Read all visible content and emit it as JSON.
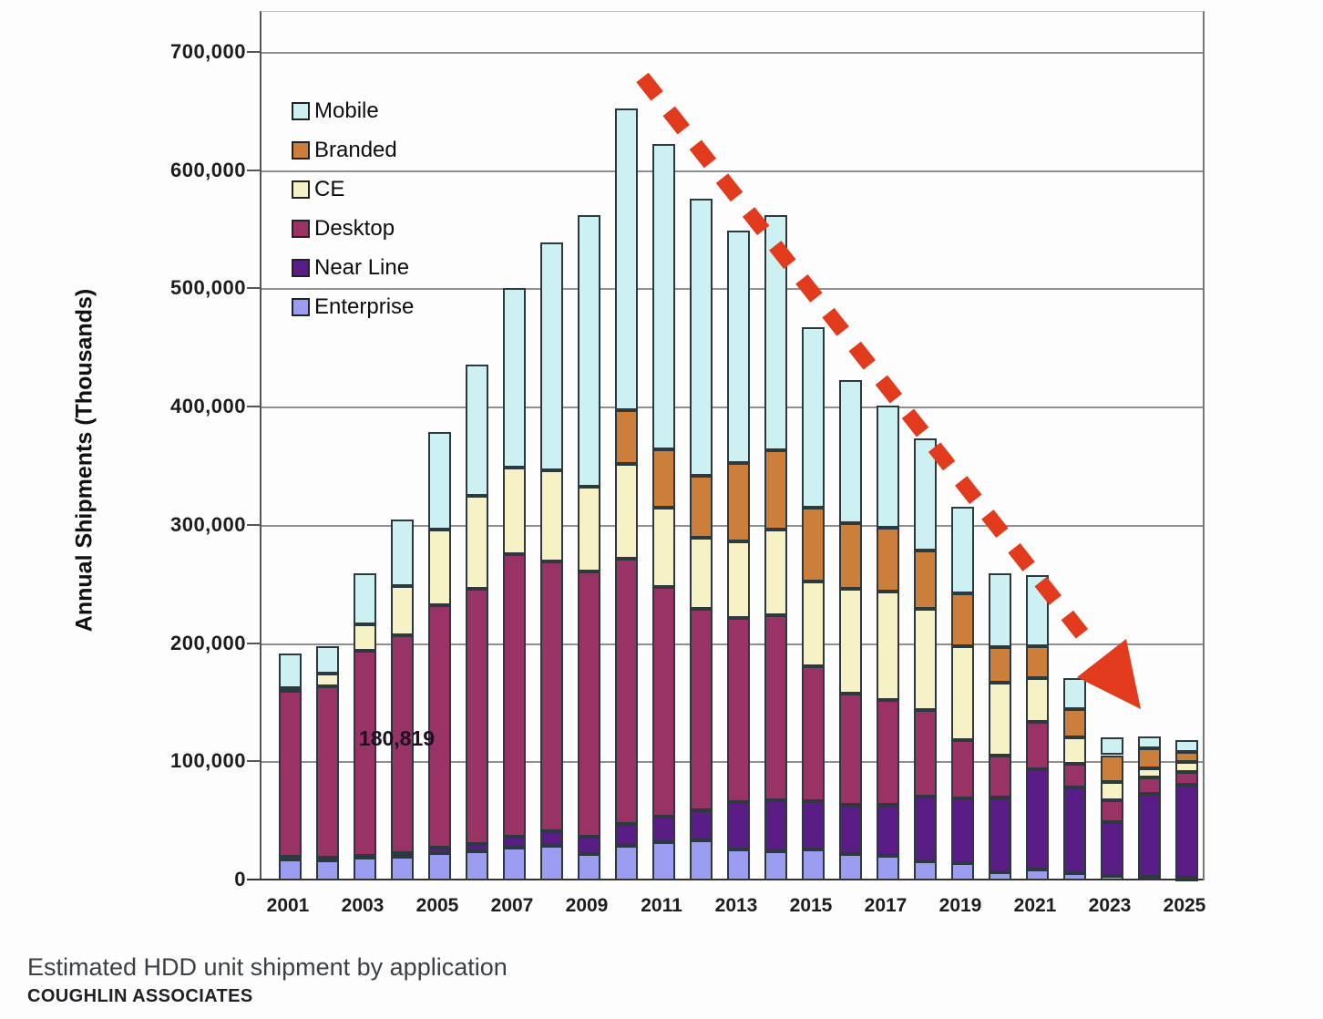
{
  "caption": "Estimated HDD unit shipment by application",
  "source": "COUGHLIN ASSOCIATES",
  "annotation_label": "180,819",
  "colors": {
    "mobile": "#cdf0f2",
    "branded": "#cc7f3a",
    "ce": "#f7f2c6",
    "desktop": "#993366",
    "near_line": "#5a1d85",
    "enterprise": "#9a9df0",
    "arrow": "#e23a1d",
    "gridline": "#8f8f8f"
  },
  "chart_data": {
    "type": "bar",
    "stacked": true,
    "title": "",
    "xlabel": "",
    "ylabel": "Annual Shipments (Thousands)",
    "ylim": [
      0,
      700000
    ],
    "ytick_step": 100000,
    "ytick_labels": [
      "0",
      "100,000",
      "200,000",
      "300,000",
      "400,000",
      "500,000",
      "600,000",
      "700,000"
    ],
    "grid": true,
    "legend_position": "upper-left-inside",
    "x": [
      2001,
      2002,
      2003,
      2004,
      2005,
      2006,
      2007,
      2008,
      2009,
      2010,
      2011,
      2012,
      2013,
      2014,
      2015,
      2016,
      2017,
      2018,
      2019,
      2020,
      2021,
      2022,
      2023,
      2024,
      2025
    ],
    "xtick_labels": [
      "2001",
      "2003",
      "2005",
      "2007",
      "2009",
      "2011",
      "2013",
      "2015",
      "2017",
      "2019",
      "2021",
      "2023",
      "2025"
    ],
    "series": [
      {
        "name": "Enterprise",
        "color_key": "enterprise",
        "values": [
          18000,
          17000,
          19000,
          20000,
          23000,
          25000,
          28000,
          29000,
          22000,
          29000,
          32000,
          34000,
          26000,
          25000,
          26000,
          22000,
          21000,
          16000,
          15000,
          7000,
          9000,
          6000,
          4000,
          3000,
          2000
        ]
      },
      {
        "name": "Near Line",
        "color_key": "near_line",
        "values": [
          2000,
          2000,
          2000,
          3000,
          5000,
          6000,
          9000,
          13000,
          15000,
          19000,
          22000,
          25000,
          40000,
          43000,
          41000,
          42000,
          43000,
          55000,
          54000,
          63000,
          85000,
          73000,
          45000,
          70000,
          79000
        ]
      },
      {
        "name": "Desktop",
        "color_key": "desktop",
        "values": [
          140000,
          145000,
          173000,
          184000,
          205000,
          216000,
          239000,
          228000,
          224000,
          224000,
          194000,
          171000,
          156000,
          156000,
          114000,
          94000,
          89000,
          73000,
          50000,
          36000,
          40000,
          20000,
          19000,
          14000,
          11000
        ]
      },
      {
        "name": "CE",
        "color_key": "ce",
        "values": [
          3000,
          11000,
          23000,
          42000,
          64000,
          78000,
          73000,
          77000,
          72000,
          80000,
          67000,
          60000,
          65000,
          73000,
          72000,
          89000,
          91000,
          86000,
          79000,
          61000,
          37000,
          22000,
          15000,
          8000,
          8000
        ]
      },
      {
        "name": "Branded",
        "color_key": "branded",
        "values": [
          0,
          0,
          0,
          0,
          0,
          0,
          0,
          0,
          0,
          46000,
          50000,
          52000,
          66000,
          67000,
          62000,
          55000,
          54000,
          49000,
          45000,
          30000,
          27000,
          24000,
          23000,
          17000,
          9000
        ]
      },
      {
        "name": "Mobile",
        "color_key": "mobile",
        "values": [
          29000,
          23000,
          43000,
          56000,
          82000,
          111000,
          152000,
          193000,
          230000,
          255000,
          258000,
          235000,
          197000,
          199000,
          153000,
          121000,
          104000,
          95000,
          73000,
          63000,
          60000,
          26000,
          15000,
          10000,
          10000
        ]
      }
    ],
    "legend_order": [
      "Mobile",
      "Branded",
      "CE",
      "Desktop",
      "Near Line",
      "Enterprise"
    ],
    "annotation": {
      "text": "180,819",
      "near_year": 2003
    }
  }
}
